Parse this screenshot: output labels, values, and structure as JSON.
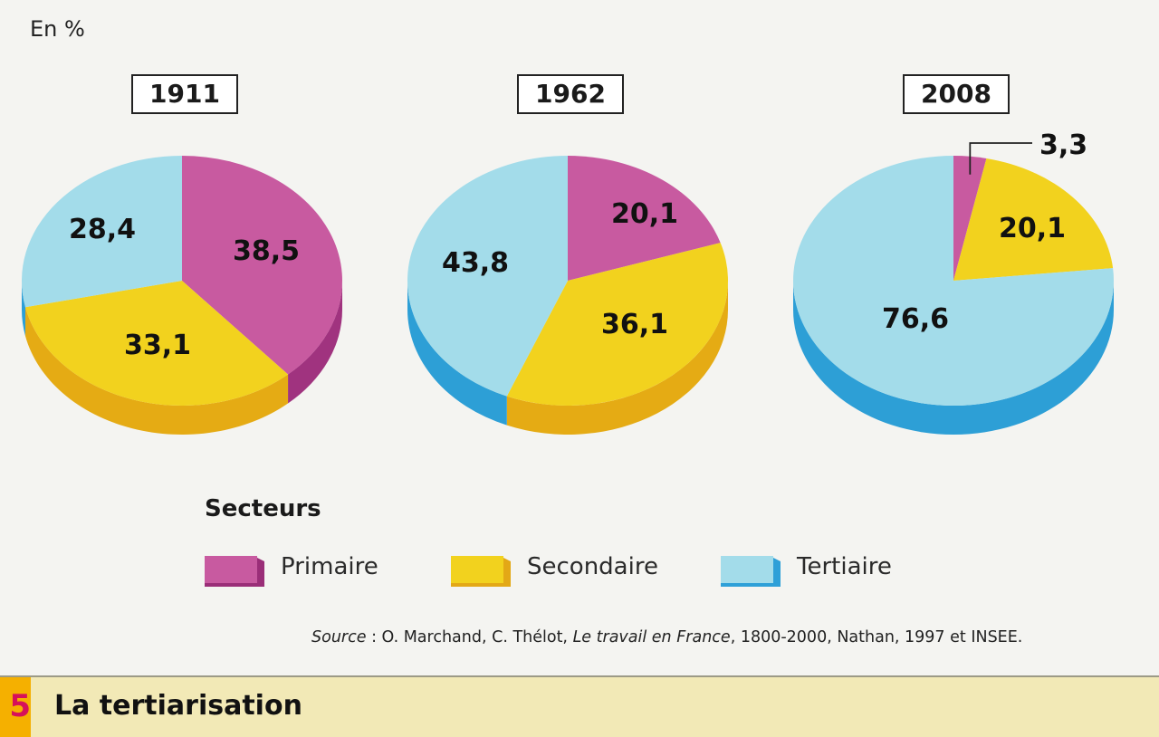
{
  "chart_data": {
    "type": "pie",
    "unit_label": "En %",
    "legend": {
      "title": "Secteurs",
      "entries": [
        {
          "name": "Primaire",
          "color": "#c85aa0"
        },
        {
          "name": "Secondaire",
          "color": "#f2d21e"
        },
        {
          "name": "Tertiaire",
          "color": "#a3dcea"
        }
      ]
    },
    "charts": [
      {
        "year": "1911",
        "slices": [
          {
            "sector": "Primaire",
            "value": 38.5,
            "label": "38,5"
          },
          {
            "sector": "Secondaire",
            "value": 33.1,
            "label": "33,1"
          },
          {
            "sector": "Tertiaire",
            "value": 28.4,
            "label": "28,4"
          }
        ]
      },
      {
        "year": "1962",
        "slices": [
          {
            "sector": "Primaire",
            "value": 20.1,
            "label": "20,1"
          },
          {
            "sector": "Secondaire",
            "value": 36.1,
            "label": "36,1"
          },
          {
            "sector": "Tertiaire",
            "value": 43.8,
            "label": "43,8"
          }
        ]
      },
      {
        "year": "2008",
        "slices": [
          {
            "sector": "Primaire",
            "value": 3.3,
            "label": "3,3"
          },
          {
            "sector": "Secondaire",
            "value": 20.1,
            "label": "20,1"
          },
          {
            "sector": "Tertiaire",
            "value": 76.6,
            "label": "76,6"
          }
        ]
      }
    ]
  },
  "source": {
    "prefix": "Source",
    "authors": " : O. Marchand, C. Thélot, ",
    "work": "Le travail en France",
    "rest": ", 1800-2000, Nathan, 1997 et INSEE."
  },
  "document": {
    "number": "5",
    "title": "La tertiarisation"
  }
}
